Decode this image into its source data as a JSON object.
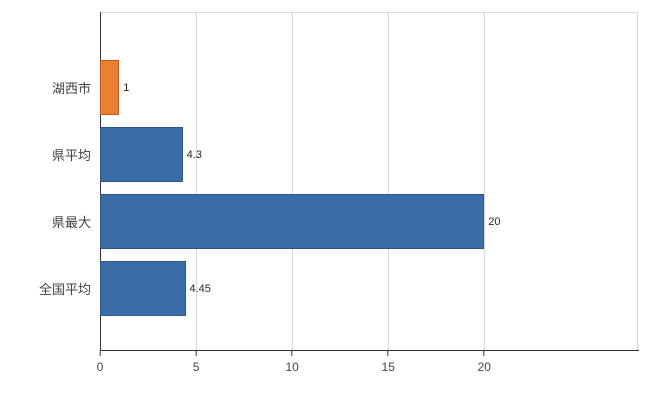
{
  "chart_data": {
    "type": "bar",
    "orientation": "horizontal",
    "title": "",
    "categories": [
      "湖西市",
      "県平均",
      "県最大",
      "全国平均"
    ],
    "values": [
      1,
      4.3,
      20,
      4.45
    ],
    "value_labels": [
      "1",
      "4.3",
      "20",
      "4.45"
    ],
    "series_colors": [
      "#ED7D31",
      "#3A6CA8",
      "#3A6CA8",
      "#3A6CA8"
    ],
    "bar_border_colors": [
      "#BC5E1B",
      "#2E5784",
      "#2E5784",
      "#2E5784"
    ],
    "xlim": [
      0,
      28
    ],
    "xticks": [
      0,
      5,
      10,
      15,
      20
    ],
    "xtick_labels": [
      "0",
      "5",
      "10",
      "15",
      "20"
    ],
    "grid": "vertical",
    "legend": "none",
    "page_bg": "#ffffff",
    "plot_bg": "#ffffff",
    "axis_color": "#333333",
    "gridline_color": "#d9d9d9",
    "category_label_color": "#404040",
    "tick_label_color": "#444444",
    "value_label_color": "#262626"
  }
}
